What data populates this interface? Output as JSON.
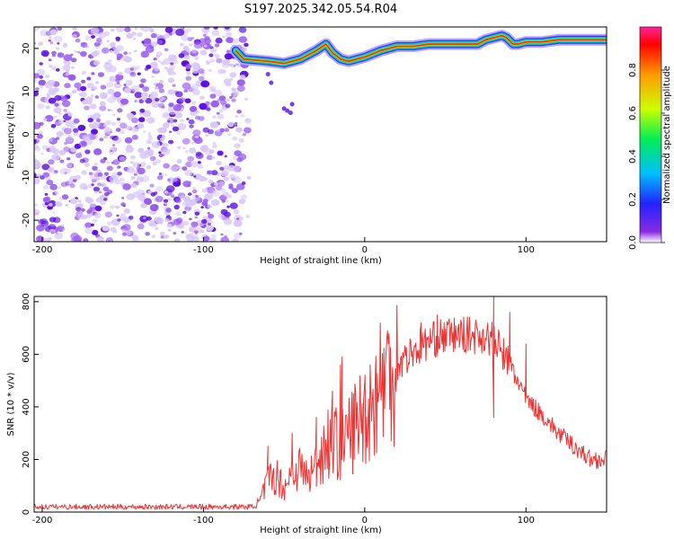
{
  "chart_data": [
    {
      "type": "heatmap",
      "title": "S197.2025.342.05.54.R04",
      "xlabel": "Height of straight line (km)",
      "ylabel": "Frequency (Hz)",
      "xlim": [
        -205,
        150
      ],
      "ylim": [
        -25,
        25
      ],
      "xticks": [
        -200,
        -100,
        0,
        100
      ],
      "yticks": [
        -20,
        -10,
        0,
        10,
        20
      ],
      "noise_region_x": [
        -205,
        -73
      ],
      "ridge": {
        "x": [
          -80,
          -75,
          -60,
          -50,
          -40,
          -30,
          -24,
          -20,
          -15,
          -10,
          -5,
          0,
          10,
          20,
          30,
          40,
          50,
          60,
          70,
          75,
          80,
          85,
          88,
          92,
          95,
          100,
          110,
          120,
          130,
          140,
          150
        ],
        "y": [
          19.5,
          17.5,
          17.0,
          16.5,
          17.5,
          19.5,
          21.0,
          19.0,
          17.5,
          17.0,
          17.5,
          18.0,
          19.5,
          20.5,
          20.5,
          21.0,
          21.0,
          21.0,
          21.0,
          22.0,
          22.5,
          23.0,
          22.5,
          21.0,
          21.0,
          21.5,
          21.5,
          22.0,
          22.0,
          22.0,
          22.0
        ]
      },
      "colorbar": {
        "label": "Normalized spectral amplitude",
        "range": [
          0,
          1
        ],
        "ticks": [
          "0.0",
          "0.2",
          "0.4",
          "0.6",
          "0.8"
        ]
      }
    },
    {
      "type": "line",
      "xlabel": "Height of straight line (km)",
      "ylabel": "SNR (10 * v/v)",
      "xlim": [
        -205,
        150
      ],
      "ylim": [
        0,
        820
      ],
      "xticks": [
        -200,
        -100,
        0,
        100
      ],
      "yticks": [
        0,
        200,
        400,
        600,
        800
      ],
      "series": [
        {
          "name": "SNR",
          "color": "#ee3333",
          "x": [
            -205,
            -180,
            -150,
            -120,
            -100,
            -80,
            -70,
            -65,
            -60,
            -55,
            -50,
            -45,
            -40,
            -35,
            -30,
            -25,
            -20,
            -15,
            -10,
            -5,
            0,
            5,
            10,
            20,
            30,
            40,
            50,
            60,
            70,
            75,
            80,
            85,
            90,
            95,
            100,
            110,
            120,
            130,
            140,
            150
          ],
          "y": [
            20,
            20,
            20,
            20,
            20,
            20,
            20,
            40,
            120,
            140,
            90,
            160,
            170,
            130,
            180,
            250,
            280,
            240,
            300,
            340,
            380,
            420,
            500,
            560,
            610,
            650,
            670,
            675,
            670,
            670,
            650,
            610,
            560,
            500,
            430,
            370,
            300,
            250,
            200,
            200
          ]
        }
      ],
      "spikes": [
        {
          "x": -60,
          "y": 250
        },
        {
          "x": -45,
          "y": 300
        },
        {
          "x": -30,
          "y": 360
        },
        {
          "x": -20,
          "y": 460
        },
        {
          "x": -15,
          "y": 560
        },
        {
          "x": -14,
          "y": 590
        },
        {
          "x": 35,
          "y": 720
        },
        {
          "x": 45,
          "y": 750
        },
        {
          "x": 80,
          "y": 820
        },
        {
          "x": 80,
          "y": 360
        },
        {
          "x": 90,
          "y": 760
        },
        {
          "x": 100,
          "y": 640
        }
      ]
    }
  ]
}
